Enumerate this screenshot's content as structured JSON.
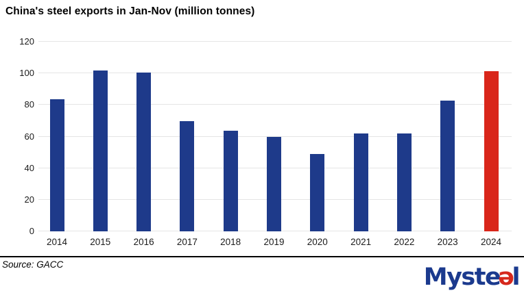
{
  "chart": {
    "title": "China's steel exports in Jan-Nov (million tonnes)",
    "source_note": "Source: GACC",
    "logo": {
      "brand": "Mysteel",
      "part_main": "Myst",
      "part_e1": "e",
      "part_e2": "ə",
      "part_l": "l",
      "blue": "#1b3a8e",
      "red": "#d6281c"
    }
  },
  "chart_data": {
    "type": "bar",
    "title": "China's steel exports in Jan-Nov (million tonnes)",
    "categories": [
      "2014",
      "2015",
      "2016",
      "2017",
      "2018",
      "2019",
      "2020",
      "2021",
      "2022",
      "2023",
      "2024"
    ],
    "values": [
      83.6,
      101.7,
      100.7,
      69.8,
      63.8,
      59.7,
      48.8,
      61.9,
      62.0,
      82.7,
      101.2
    ],
    "highlight_index": 10,
    "xlabel": "",
    "ylabel": "",
    "ylim": [
      0,
      120
    ],
    "yticks": [
      0,
      20,
      40,
      60,
      80,
      100,
      120
    ],
    "grid": "horizontal",
    "legend": "none",
    "colors": {
      "bar": "#1e3a8a",
      "highlight": "#d9261a",
      "gridline": "#e5e5e5",
      "text": "#1a1a1a"
    }
  }
}
